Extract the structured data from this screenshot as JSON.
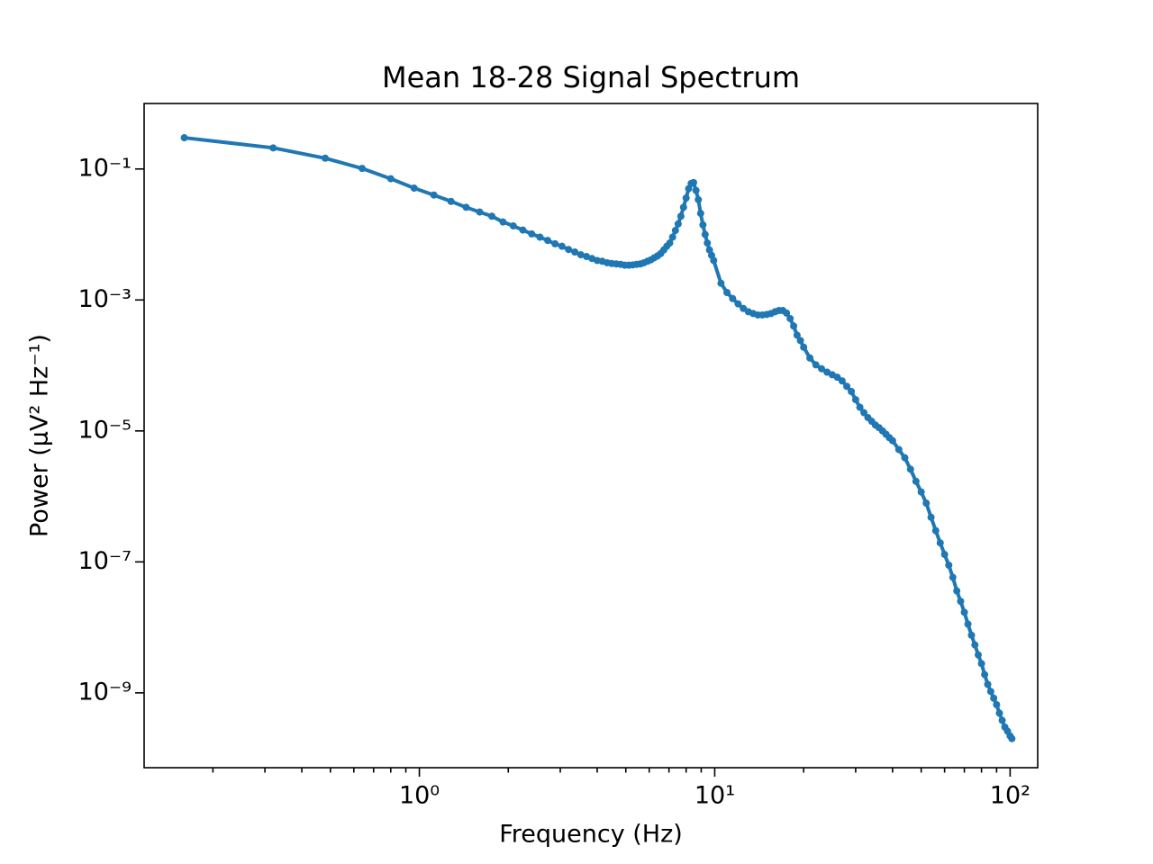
{
  "chart_data": {
    "type": "line",
    "title": "Mean 18-28 Signal Spectrum",
    "x_label": "Frequency (Hz)",
    "y_label": "Power (μV² Hz⁻¹)",
    "xscale": "log",
    "yscale": "log",
    "color": "#1f77b4",
    "xlim": [
      0.117,
      124
    ],
    "ylim": [
      7.2e-11,
      1.0
    ],
    "xticks": [
      {
        "value": 1,
        "label": "10⁰"
      },
      {
        "value": 10,
        "label": "10¹"
      },
      {
        "value": 100,
        "label": "10²"
      }
    ],
    "xminorticks": [
      0.2,
      0.3,
      0.4,
      0.5,
      0.6,
      0.7,
      0.8,
      0.9,
      2,
      3,
      4,
      5,
      6,
      7,
      8,
      9,
      20,
      30,
      40,
      50,
      60,
      70,
      80,
      90
    ],
    "yticks": [
      {
        "value": 1e-09,
        "label": "10⁻⁹"
      },
      {
        "value": 1e-07,
        "label": "10⁻⁷"
      },
      {
        "value": 1e-05,
        "label": "10⁻⁵"
      },
      {
        "value": 0.001,
        "label": "10⁻³"
      },
      {
        "value": 0.1,
        "label": "10⁻¹"
      }
    ],
    "x": [
      0.16,
      0.32,
      0.48,
      0.64,
      0.8,
      0.96,
      1.12,
      1.28,
      1.44,
      1.6,
      1.76,
      1.92,
      2.08,
      2.24,
      2.4,
      2.56,
      2.72,
      2.88,
      3.04,
      3.2,
      3.36,
      3.52,
      3.68,
      3.84,
      4,
      4.16,
      4.32,
      4.48,
      4.64,
      4.8,
      4.96,
      5.12,
      5.28,
      5.44,
      5.6,
      5.76,
      5.92,
      6.08,
      6.24,
      6.4,
      6.56,
      6.72,
      6.88,
      7.04,
      7.2,
      7.36,
      7.52,
      7.68,
      7.84,
      8,
      8.16,
      8.32,
      8.48,
      8.64,
      8.8,
      8.96,
      9.12,
      9.28,
      9.44,
      9.6,
      9.76,
      9.92,
      10.5,
      11,
      11.5,
      12,
      12.5,
      13,
      13.5,
      14,
      14.5,
      15,
      15.5,
      16,
      16.5,
      17,
      17.5,
      18,
      18.5,
      19,
      19.5,
      20,
      21,
      22,
      23,
      24,
      25,
      26,
      27,
      28,
      29,
      30,
      31,
      32,
      33,
      34,
      35,
      36,
      37,
      38,
      39,
      40,
      42,
      44,
      46,
      48,
      50,
      52,
      54,
      56,
      58,
      60,
      62,
      64,
      66,
      68,
      70,
      72,
      74,
      76,
      78,
      80,
      82,
      84,
      86,
      88,
      90,
      92,
      94,
      96,
      98,
      100,
      101.4
    ],
    "values": [
      0.3,
      0.21,
      0.146,
      0.102,
      0.071,
      0.051,
      0.04,
      0.032,
      0.026,
      0.022,
      0.019,
      0.0155,
      0.0135,
      0.0117,
      0.0102,
      0.0091,
      0.0081,
      0.0072,
      0.0066,
      0.0059,
      0.0054,
      0.0049,
      0.0046,
      0.0043,
      0.004,
      0.0039,
      0.0037,
      0.0036,
      0.00355,
      0.0035,
      0.0034,
      0.0034,
      0.00343,
      0.0035,
      0.00355,
      0.0037,
      0.0039,
      0.0041,
      0.0044,
      0.0047,
      0.0051,
      0.0058,
      0.0066,
      0.0074,
      0.0091,
      0.0115,
      0.0145,
      0.019,
      0.026,
      0.036,
      0.05,
      0.06,
      0.062,
      0.047,
      0.034,
      0.021,
      0.014,
      0.01,
      0.0074,
      0.0058,
      0.0048,
      0.004,
      0.0018,
      0.0013,
      0.00105,
      0.00087,
      0.00074,
      0.00066,
      0.00062,
      0.00059,
      0.00059,
      0.0006,
      0.00062,
      0.00066,
      0.00069,
      0.00069,
      0.00063,
      0.00052,
      0.0004,
      0.00029,
      0.00024,
      0.00019,
      0.00013,
      0.000102,
      8.9e-05,
      7.9e-05,
      7.2e-05,
      6.6e-05,
      5.8e-05,
      4.8e-05,
      4e-05,
      3e-05,
      2.3e-05,
      1.9e-05,
      1.6e-05,
      1.4e-05,
      1.23e-05,
      1.12e-05,
      1e-05,
      8.9e-06,
      7.9e-06,
      7.1e-06,
      5.2e-06,
      3.9e-06,
      2.6e-06,
      1.7e-06,
      1.17e-06,
      7.9e-07,
      4.8e-07,
      3e-07,
      1.95e-07,
      1.3e-07,
      8.9e-08,
      5.8e-08,
      3.6e-08,
      2.5e-08,
      1.7e-08,
      1.12e-08,
      7.6e-09,
      5.4e-09,
      3.8e-09,
      2.8e-09,
      1.9e-09,
      1.35e-09,
      1.05e-09,
      8.3e-10,
      6.6e-10,
      4.9e-10,
      3.8e-10,
      3e-10,
      2.6e-10,
      2.2e-10,
      2e-10
    ]
  }
}
